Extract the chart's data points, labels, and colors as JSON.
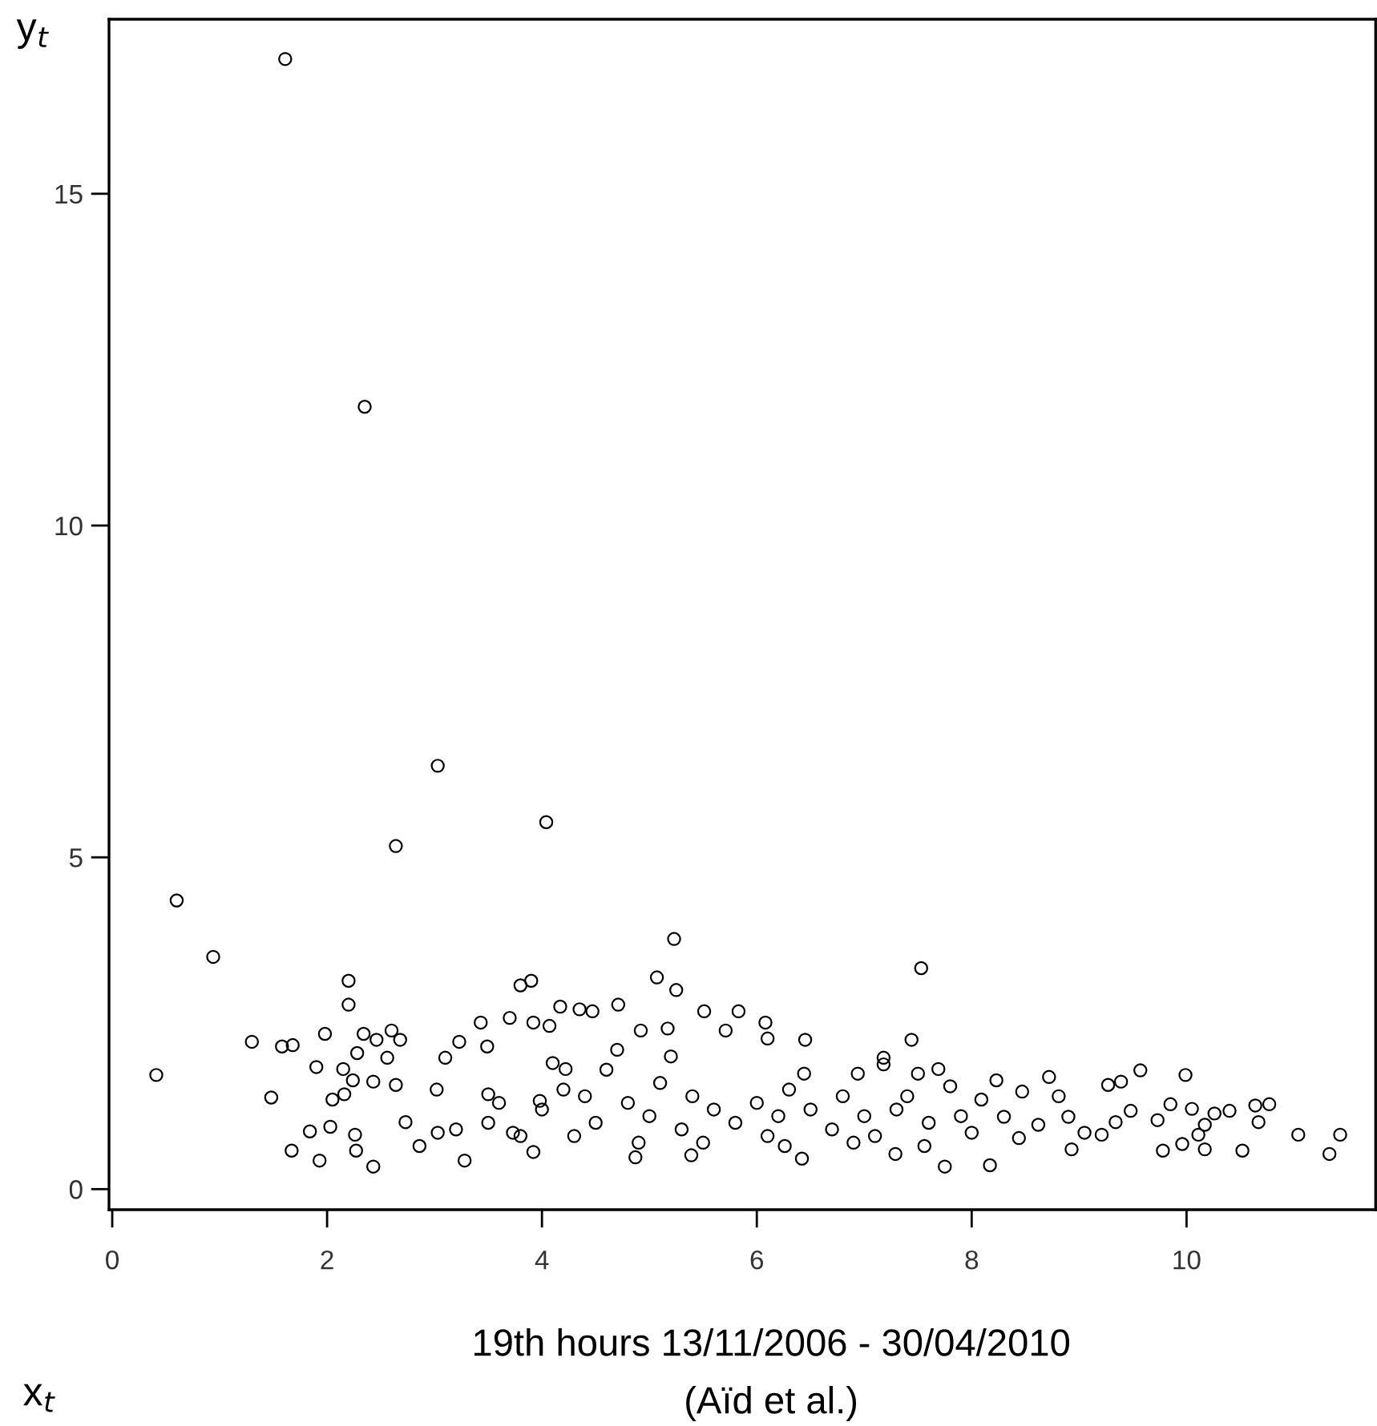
{
  "chart_data": {
    "type": "scatter",
    "title": "19th hours 13/11/2006 - 30/04/2010",
    "annotations": [
      "(Aïd et al.)"
    ],
    "xlabel": "x$_{t}$",
    "ylabel": "y$_{t}$",
    "xlim": [
      -0.03,
      11.76
    ],
    "ylim": [
      -0.31,
      17.63
    ],
    "xticks": [
      0,
      2,
      4,
      6,
      8,
      10
    ],
    "yticks": [
      0,
      5,
      10,
      15
    ],
    "grid": false,
    "legend": false,
    "marker": "circle",
    "series": [
      {
        "color": "#000000",
        "x": [
          0.41,
          0.6,
          0.94,
          1.3,
          1.48,
          1.58,
          1.61,
          1.68,
          1.67,
          1.84,
          1.9,
          1.93,
          1.98,
          2.03,
          2.05,
          2.15,
          2.16,
          2.2,
          2.2,
          2.24,
          2.26,
          2.27,
          2.28,
          2.34,
          2.35,
          2.43,
          2.43,
          2.46,
          2.56,
          2.6,
          2.64,
          2.64,
          2.68,
          2.73,
          2.86,
          3.02,
          3.03,
          3.03,
          3.1,
          3.23,
          3.28,
          3.43,
          3.49,
          3.5,
          3.7,
          3.73,
          3.8,
          3.9,
          3.92,
          4.07,
          4.17,
          3.92,
          3.98,
          4.04,
          4.22,
          4.35,
          4.47,
          4.71,
          4.87,
          4.92,
          5.07,
          5.25,
          5.23,
          5.17,
          5.39,
          5.51,
          5.71,
          3.2,
          3.5,
          3.8,
          4.0,
          4.2,
          4.4,
          4.5,
          4.6,
          4.8,
          5.0,
          5.1,
          5.3,
          5.4,
          5.6,
          5.8,
          6.0,
          4.3,
          4.9,
          5.5,
          3.6,
          4.1,
          5.2,
          4.7,
          5.83,
          6.08,
          6.1,
          6.45,
          6.44,
          6.26,
          6.42,
          6.94,
          6.9,
          7.18,
          7.18,
          7.29,
          7.44,
          7.5,
          7.53,
          7.69,
          7.75,
          7.56,
          7.8,
          8.0,
          8.09,
          8.17,
          8.23,
          8.3,
          8.47,
          8.44,
          8.62,
          8.72,
          8.81,
          8.93,
          8.9,
          9.05,
          9.21,
          9.27,
          9.39,
          9.34,
          9.57,
          9.48,
          9.73,
          9.78,
          9.85,
          9.96,
          9.99,
          10.05,
          10.11,
          10.17,
          10.17,
          10.26,
          10.4,
          10.52,
          10.64,
          10.67,
          10.77,
          11.04,
          11.33,
          11.43,
          6.2,
          6.5,
          6.7,
          7.0,
          7.3,
          7.6,
          6.3,
          6.8,
          7.4,
          7.9,
          6.1,
          7.1
        ],
        "values": [
          1.72,
          4.35,
          3.5,
          2.22,
          1.38,
          2.15,
          17.03,
          2.17,
          0.58,
          0.87,
          1.84,
          0.43,
          2.34,
          0.94,
          1.35,
          1.81,
          1.43,
          3.14,
          2.78,
          1.64,
          0.82,
          0.58,
          2.05,
          2.34,
          11.79,
          1.62,
          0.34,
          2.25,
          1.98,
          2.39,
          1.57,
          5.17,
          2.25,
          1.01,
          0.65,
          1.5,
          6.38,
          0.85,
          1.98,
          2.22,
          0.43,
          2.51,
          2.15,
          1.43,
          2.58,
          0.85,
          3.07,
          3.14,
          2.51,
          2.46,
          2.75,
          0.56,
          1.33,
          5.53,
          1.81,
          2.71,
          2.68,
          2.78,
          0.48,
          2.39,
          3.19,
          3.0,
          3.77,
          2.42,
          0.51,
          2.68,
          2.39,
          0.9,
          1.0,
          0.8,
          1.2,
          1.5,
          1.4,
          1.0,
          1.8,
          1.3,
          1.1,
          1.6,
          0.9,
          1.4,
          1.2,
          1.0,
          1.3,
          0.8,
          0.7,
          0.7,
          1.3,
          1.9,
          2.0,
          2.1,
          2.68,
          2.51,
          2.27,
          2.25,
          1.74,
          0.65,
          0.46,
          1.74,
          0.7,
          1.98,
          1.88,
          0.53,
          2.25,
          1.74,
          3.33,
          1.81,
          0.34,
          0.65,
          1.55,
          0.85,
          1.35,
          0.36,
          1.64,
          1.09,
          1.47,
          0.77,
          0.97,
          1.69,
          1.4,
          0.6,
          1.09,
          0.85,
          0.82,
          1.57,
          1.62,
          1.01,
          1.79,
          1.18,
          1.04,
          0.58,
          1.28,
          0.68,
          1.72,
          1.21,
          0.82,
          0.6,
          0.97,
          1.14,
          1.18,
          0.58,
          1.26,
          1.01,
          1.28,
          0.82,
          0.53,
          0.82,
          1.1,
          1.2,
          0.9,
          1.1,
          1.2,
          1.0,
          1.5,
          1.4,
          1.4,
          1.1,
          0.8,
          0.8
        ]
      }
    ]
  }
}
